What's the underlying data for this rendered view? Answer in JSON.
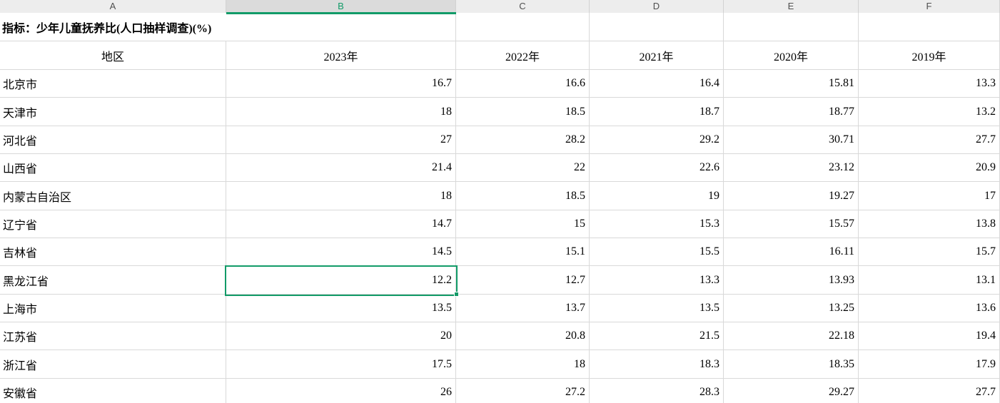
{
  "colors": {
    "accent_green": "#129b68",
    "header_bg": "#ededed",
    "header_selected_bg": "#dbdbdb",
    "gridline": "#d9d9d9"
  },
  "column_headers": {
    "letters": [
      "A",
      "B",
      "C",
      "D",
      "E",
      "F"
    ],
    "selected_letter": "B"
  },
  "sheet": {
    "title": "指标：少年儿童抚养比(人口抽样调查)(%)",
    "header_row": {
      "region_label": "地区",
      "years": [
        "2023年",
        "2022年",
        "2021年",
        "2020年",
        "2019年"
      ]
    },
    "rows": [
      {
        "region": "北京市",
        "values": [
          "16.7",
          "16.6",
          "16.4",
          "15.81",
          "13.3"
        ]
      },
      {
        "region": "天津市",
        "values": [
          "18",
          "18.5",
          "18.7",
          "18.77",
          "13.2"
        ]
      },
      {
        "region": "河北省",
        "values": [
          "27",
          "28.2",
          "29.2",
          "30.71",
          "27.7"
        ]
      },
      {
        "region": "山西省",
        "values": [
          "21.4",
          "22",
          "22.6",
          "23.12",
          "20.9"
        ]
      },
      {
        "region": "内蒙古自治区",
        "values": [
          "18",
          "18.5",
          "19",
          "19.27",
          "17"
        ]
      },
      {
        "region": "辽宁省",
        "values": [
          "14.7",
          "15",
          "15.3",
          "15.57",
          "13.8"
        ]
      },
      {
        "region": "吉林省",
        "values": [
          "14.5",
          "15.1",
          "15.5",
          "16.11",
          "15.7"
        ]
      },
      {
        "region": "黑龙江省",
        "values": [
          "12.2",
          "12.7",
          "13.3",
          "13.93",
          "13.1"
        ]
      },
      {
        "region": "上海市",
        "values": [
          "13.5",
          "13.7",
          "13.5",
          "13.25",
          "13.6"
        ]
      },
      {
        "region": "江苏省",
        "values": [
          "20",
          "20.8",
          "21.5",
          "22.18",
          "19.4"
        ]
      },
      {
        "region": "浙江省",
        "values": [
          "17.5",
          "18",
          "18.3",
          "18.35",
          "17.9"
        ]
      },
      {
        "region": "安徽省",
        "values": [
          "26",
          "27.2",
          "28.3",
          "29.27",
          "27.7"
        ]
      }
    ],
    "selection": {
      "column_letter": "B",
      "row_region": "黑龙江省",
      "value": "12.2"
    }
  }
}
